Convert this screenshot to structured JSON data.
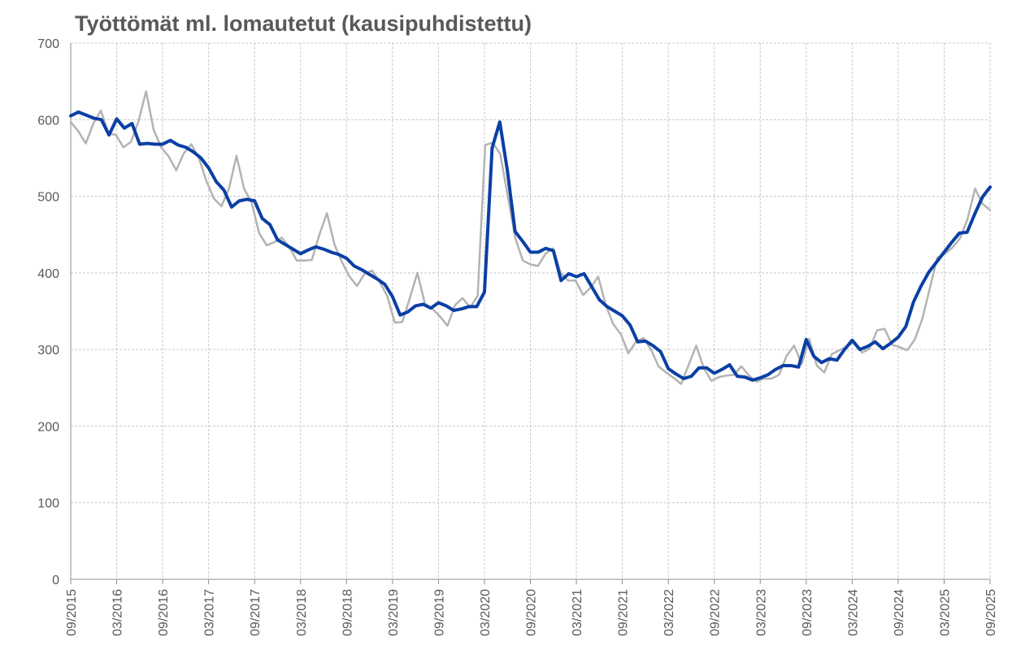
{
  "chart_data": {
    "type": "line",
    "title": "Työttömät ml. lomautetut (kausipuhdistettu)",
    "xlabel": "",
    "ylabel": "",
    "ylim": [
      0,
      700
    ],
    "yticks": [
      "0",
      "100",
      "200",
      "300",
      "400",
      "500",
      "600",
      "700"
    ],
    "xticks": [
      "09/2015",
      "03/2016",
      "09/2016",
      "03/2017",
      "09/2017",
      "03/2018",
      "09/2018",
      "03/2019",
      "09/2019",
      "03/2020",
      "09/2020",
      "03/2021",
      "09/2021",
      "03/2022",
      "09/2022",
      "03/2023",
      "09/2023",
      "03/2024",
      "09/2024",
      "03/2025",
      "09/2025"
    ],
    "grid": true,
    "legend": "none",
    "series": [
      {
        "color": "#b3b3b3",
        "values": [
          597,
          585,
          569,
          595,
          612,
          582,
          580,
          564,
          571,
          598,
          637,
          587,
          564,
          552,
          534,
          556,
          568,
          550,
          520,
          497,
          487,
          510,
          553,
          510,
          492,
          452,
          436,
          440,
          446,
          434,
          416,
          416,
          417,
          450,
          478,
          437,
          414,
          395,
          383,
          399,
          403,
          388,
          370,
          335,
          336,
          367,
          400,
          360,
          353,
          343,
          331,
          358,
          367,
          355,
          370,
          567,
          570,
          555,
          500,
          445,
          416,
          411,
          409,
          425,
          432,
          400,
          390,
          390,
          371,
          381,
          395,
          358,
          333,
          320,
          295,
          310,
          315,
          300,
          278,
          270,
          263,
          255,
          280,
          305,
          276,
          259,
          264,
          266,
          267,
          278,
          266,
          258,
          262,
          262,
          267,
          292,
          305,
          281,
          314,
          279,
          270,
          294,
          299,
          304,
          310,
          296,
          301,
          325,
          327,
          306,
          303,
          299,
          313,
          340,
          380,
          420,
          425,
          433,
          445,
          470,
          510,
          490,
          482
        ]
      },
      {
        "color": "#0a3fa5",
        "values": [
          605,
          610,
          606,
          602,
          600,
          580,
          601,
          589,
          595,
          568,
          569,
          568,
          568,
          573,
          567,
          564,
          558,
          550,
          537,
          519,
          508,
          486,
          494,
          496,
          494,
          471,
          463,
          443,
          437,
          431,
          425,
          430,
          434,
          431,
          427,
          424,
          419,
          409,
          404,
          398,
          392,
          385,
          369,
          345,
          349,
          357,
          359,
          354,
          361,
          357,
          351,
          353,
          356,
          356,
          375,
          563,
          597,
          533,
          454,
          441,
          427,
          427,
          432,
          429,
          390,
          399,
          395,
          399,
          382,
          365,
          356,
          350,
          344,
          332,
          310,
          311,
          305,
          297,
          275,
          268,
          262,
          265,
          276,
          276,
          269,
          274,
          280,
          265,
          264,
          260,
          263,
          267,
          274,
          279,
          279,
          277,
          313,
          291,
          283,
          288,
          286,
          300,
          312,
          300,
          304,
          310,
          301,
          308,
          316,
          330,
          362,
          383,
          401,
          414,
          427,
          440,
          452,
          453,
          477,
          499,
          512
        ]
      }
    ]
  }
}
